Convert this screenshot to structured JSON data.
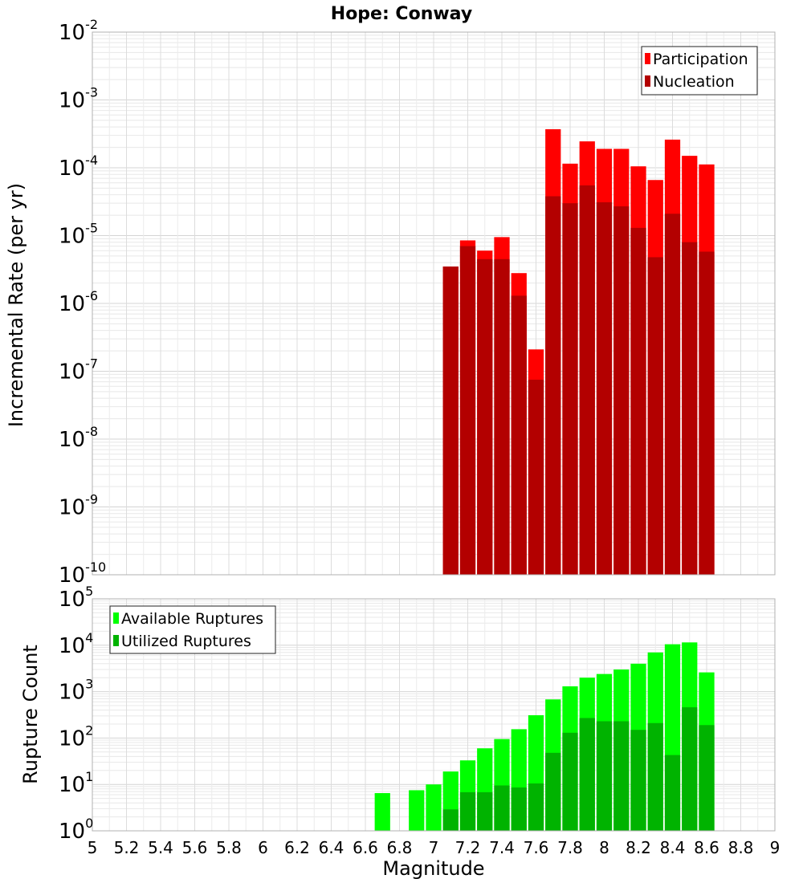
{
  "chart_data": [
    {
      "type": "bar",
      "title": "Hope: Conway",
      "xlabel": "",
      "ylabel": "Incremental Rate (per yr)",
      "yscale": "log",
      "xlim": [
        5,
        9
      ],
      "ylim_exponents": [
        -10,
        -2
      ],
      "y_tick_base": "10",
      "y_tick_exponents": [
        "-10",
        "-9",
        "-8",
        "-7",
        "-6",
        "-5",
        "-4",
        "-3",
        "-2"
      ],
      "grid": true,
      "legend_position": "top-right",
      "bin_width": 0.1,
      "x": [
        7.1,
        7.2,
        7.3,
        7.4,
        7.5,
        7.6,
        7.7,
        7.8,
        7.9,
        8.0,
        8.1,
        8.2,
        8.3,
        8.4,
        8.5,
        8.6
      ],
      "series": [
        {
          "name": "Participation",
          "color": "#ff0000",
          "values": [
            3.5e-06,
            8.5e-06,
            6e-06,
            9.5e-06,
            2.8e-06,
            2.1e-07,
            0.00037,
            0.000115,
            0.000245,
            0.00019,
            0.00019,
            0.000105,
            6.6e-05,
            0.00026,
            0.00015,
            0.000112
          ]
        },
        {
          "name": "Nucleation",
          "color": "#b30000",
          "values": [
            3.5e-06,
            7e-06,
            4.5e-06,
            4.5e-06,
            1.3e-06,
            7.5e-08,
            3.8e-05,
            3e-05,
            5.5e-05,
            3.1e-05,
            2.7e-05,
            1.3e-05,
            4.8e-06,
            2.1e-05,
            8e-06,
            5.8e-06
          ]
        }
      ]
    },
    {
      "type": "bar",
      "title": "",
      "xlabel": "Magnitude",
      "ylabel": "Rupture Count",
      "yscale": "log",
      "xlim": [
        5,
        9
      ],
      "ylim_exponents": [
        0,
        5
      ],
      "y_tick_base": "10",
      "y_tick_exponents": [
        "0",
        "1",
        "2",
        "3",
        "4",
        "5"
      ],
      "x_ticks": [
        "5",
        "5.2",
        "5.4",
        "5.6",
        "5.8",
        "6",
        "6.2",
        "6.4",
        "6.6",
        "6.8",
        "7",
        "7.2",
        "7.4",
        "7.6",
        "7.8",
        "8",
        "8.2",
        "8.4",
        "8.6",
        "8.8",
        "9"
      ],
      "grid": true,
      "legend_position": "top-left",
      "bin_width": 0.1,
      "x": [
        6.7,
        6.9,
        7.0,
        7.1,
        7.2,
        7.3,
        7.4,
        7.5,
        7.6,
        7.7,
        7.8,
        7.9,
        8.0,
        8.1,
        8.2,
        8.3,
        8.4,
        8.5,
        8.6
      ],
      "series": [
        {
          "name": "Available Ruptures",
          "color": "#00ff00",
          "values": [
            6.5,
            7.5,
            10,
            19,
            33,
            60,
            95,
            155,
            310,
            680,
            1300,
            2000,
            2400,
            3000,
            4000,
            7000,
            10500,
            11500,
            2600
          ]
        },
        {
          "name": "Utilized Ruptures",
          "color": "#00b300",
          "values": [
            null,
            null,
            null,
            2.9,
            6.8,
            6.8,
            9.5,
            8.6,
            10.5,
            48,
            130,
            270,
            230,
            230,
            150,
            210,
            43,
            460,
            190
          ]
        }
      ]
    }
  ]
}
